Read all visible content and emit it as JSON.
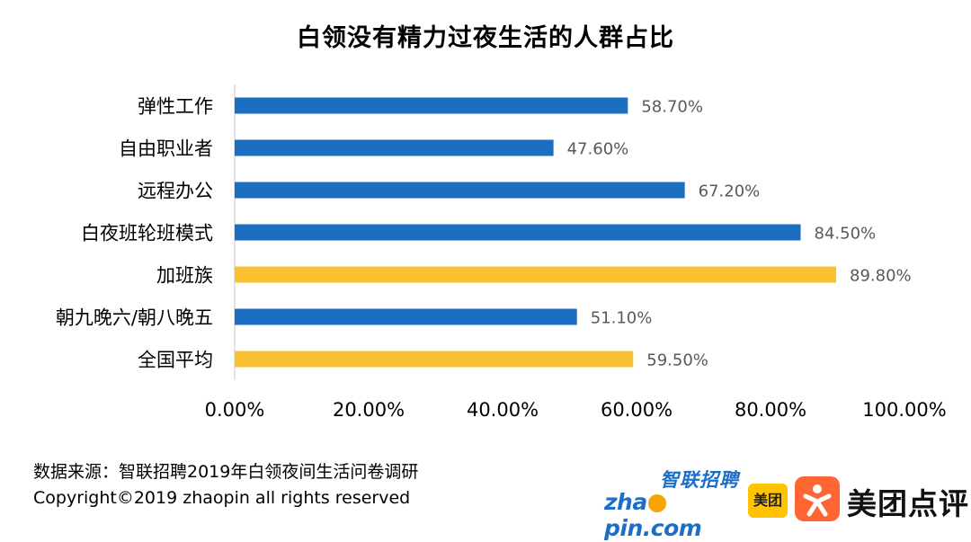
{
  "chart_data": {
    "type": "bar",
    "orientation": "horizontal",
    "title": "白领没有精力过夜生活的人群占比",
    "categories": [
      "弹性工作",
      "自由职业者",
      "远程办公",
      "白夜班轮班模式",
      "加班族",
      "朝九晚六/朝八晚五",
      "全国平均"
    ],
    "values": [
      58.7,
      47.6,
      67.2,
      84.5,
      89.8,
      51.1,
      59.5
    ],
    "value_labels": [
      "58.70%",
      "47.60%",
      "67.20%",
      "84.50%",
      "89.80%",
      "51.10%",
      "59.50%"
    ],
    "highlight": [
      false,
      false,
      false,
      false,
      true,
      false,
      true
    ],
    "xlim": [
      0,
      100
    ],
    "x_ticks": [
      0,
      20,
      40,
      60,
      80,
      100
    ],
    "x_tick_labels": [
      "0.00%",
      "20.00%",
      "40.00%",
      "60.00%",
      "80.00%",
      "100.00%"
    ],
    "grid": false,
    "xlabel": "",
    "ylabel": ""
  },
  "colors": {
    "bar": "#1c6fc0",
    "highlight": "#f9c12f",
    "value_label": "#595959",
    "axis": "#d9d9d9"
  },
  "footer": {
    "source": "数据来源：智联招聘2019年白领夜间生活问卷调研",
    "copyright": "Copyright©2019 zhaopin all rights reserved"
  },
  "logos": {
    "zhaopin_cn": "智联招聘",
    "zhaopin_en_a": "zha",
    "zhaopin_en_b": "pin.com",
    "meituan": "美团",
    "dianping": "美团点评"
  }
}
